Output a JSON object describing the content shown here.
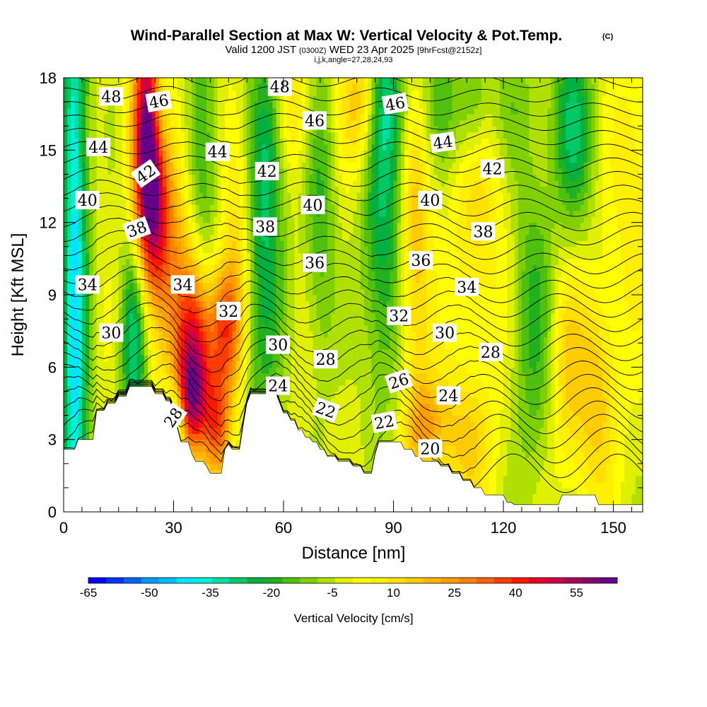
{
  "chart_data": {
    "type": "heatmap",
    "title": "Wind-Parallel Section at Max W: Vertical Velocity & Pot.Temp.",
    "title_mark": "(C)",
    "subtitle": {
      "prefix": "Valid 1200 JST",
      "utc": "(0300Z)",
      "date": "WED 23 Apr 2025",
      "forecast": "[9hrFcst@2152z]"
    },
    "indices": "i,j,k,angle=27,28,24,93",
    "xlabel": "Distance [nm]",
    "ylabel": "Height [Kft MSL]",
    "xlim": [
      0,
      158
    ],
    "ylim": [
      0,
      18
    ],
    "xticks": [
      0,
      30,
      60,
      90,
      120,
      150
    ],
    "yticks": [
      0,
      3,
      6,
      9,
      12,
      15,
      18
    ],
    "colorbar": {
      "label": "Vertical Velocity [cm/s]",
      "tick_values": [
        -65,
        -50,
        -35,
        -20,
        -5,
        10,
        25,
        40,
        55
      ],
      "range": [
        -65,
        65
      ],
      "step": 5,
      "colors": [
        "#0000ff",
        "#0033ff",
        "#0066ff",
        "#0099ff",
        "#00bbff",
        "#00e6ff",
        "#00f0d8",
        "#00e0a0",
        "#00c864",
        "#00b040",
        "#20b020",
        "#50c010",
        "#80d000",
        "#b0e000",
        "#e0f000",
        "#ffff00",
        "#fff000",
        "#ffe000",
        "#ffcc00",
        "#ffb400",
        "#ff9c00",
        "#ff8000",
        "#ff6000",
        "#ff3c00",
        "#ff1800",
        "#e80028",
        "#cc0044",
        "#aa005c",
        "#880070",
        "#660088"
      ]
    },
    "terrain_height_kft": {
      "x": [
        0,
        3,
        4,
        5,
        6,
        7,
        8,
        9,
        10,
        11,
        12,
        13,
        14,
        15,
        16,
        17,
        18,
        19,
        20,
        21,
        22,
        23,
        24,
        25,
        26,
        27,
        28,
        29,
        30,
        31,
        32,
        33,
        34,
        35,
        36,
        37,
        38,
        39,
        40,
        41,
        42,
        43,
        44,
        45,
        46,
        47,
        48,
        49,
        50,
        51,
        52,
        53,
        54,
        55,
        56,
        57,
        58,
        59,
        60,
        61,
        62,
        63,
        64,
        65,
        66,
        67,
        68,
        69,
        70,
        71,
        72,
        73,
        74,
        75,
        76,
        77,
        78,
        79,
        80,
        81,
        82,
        83,
        84,
        85,
        86,
        87,
        88,
        89,
        90,
        91,
        92,
        93,
        94,
        95,
        96,
        97,
        98,
        99,
        100,
        101,
        102,
        103,
        104,
        105,
        106,
        107,
        108,
        109,
        110,
        111,
        112,
        113,
        114,
        115,
        116,
        117,
        118,
        119,
        120,
        121,
        122,
        123,
        124,
        125,
        126,
        127,
        128,
        129,
        130,
        131,
        132,
        133,
        134,
        135,
        136,
        137,
        138,
        139,
        140,
        141,
        142,
        143,
        144,
        145,
        146,
        147,
        148,
        149,
        150,
        151,
        152,
        153,
        154,
        155,
        156,
        157,
        158
      ],
      "h": [
        2.6,
        2.6,
        3.0,
        3.0,
        3.0,
        3.0,
        3.0,
        4.2,
        4.2,
        4.2,
        4.5,
        4.5,
        4.5,
        4.8,
        4.8,
        4.8,
        5.2,
        5.2,
        5.2,
        5.2,
        5.2,
        5.2,
        5.2,
        4.9,
        4.9,
        4.9,
        4.6,
        4.6,
        4.2,
        3.5,
        2.9,
        2.9,
        2.9,
        2.4,
        2.1,
        2.1,
        2.1,
        1.9,
        1.6,
        1.6,
        1.6,
        1.6,
        2.6,
        2.8,
        2.6,
        2.6,
        2.6,
        3.6,
        4.5,
        4.9,
        4.9,
        4.9,
        4.9,
        4.9,
        4.9,
        4.9,
        4.9,
        4.5,
        4.1,
        4.1,
        3.8,
        3.8,
        3.4,
        3.4,
        3.1,
        3.1,
        2.9,
        2.9,
        2.6,
        2.6,
        2.3,
        2.3,
        2.3,
        2.1,
        2.1,
        2.1,
        2.1,
        1.9,
        1.9,
        1.9,
        1.6,
        1.6,
        1.6,
        2.4,
        2.9,
        2.9,
        2.9,
        2.9,
        2.9,
        2.9,
        2.9,
        2.6,
        2.6,
        2.6,
        2.3,
        2.3,
        2.1,
        2.1,
        2.1,
        2.1,
        2.1,
        1.9,
        1.9,
        1.9,
        1.6,
        1.6,
        1.6,
        1.3,
        1.3,
        1.3,
        1.0,
        1.0,
        1.0,
        0.7,
        0.7,
        0.7,
        0.7,
        0.7,
        0.7,
        0.4,
        0.4,
        0.3,
        0.3,
        0.3,
        0.3,
        0.3,
        0.3,
        0.3,
        0.3,
        0.3,
        0.3,
        0.3,
        0.3,
        0.3,
        0.7,
        0.7,
        0.7,
        0.7,
        0.7,
        0.7,
        0.7,
        0.7,
        0.7,
        0.7,
        0.3,
        0.3,
        0.3,
        0.3,
        0.3,
        0.3,
        0.3,
        0.3,
        0.3,
        0.3,
        0.3,
        0.3,
        0.3,
        0.3,
        0.3,
        0.3
      ]
    },
    "vertical_velocity_features": [
      {
        "x": 3,
        "z": 9,
        "sx": 2.5,
        "sz": 20,
        "w": -45
      },
      {
        "x": 23,
        "z": 16,
        "sx": 3,
        "sz": 3.5,
        "w": 58
      },
      {
        "x": 24,
        "z": 13,
        "sx": 3,
        "sz": 3,
        "w": 40
      },
      {
        "x": 29,
        "z": 11,
        "sx": 4,
        "sz": 4,
        "w": 25
      },
      {
        "x": 36,
        "z": 7,
        "sx": 3.5,
        "sz": 2.5,
        "w": 52
      },
      {
        "x": 35,
        "z": 4.5,
        "sx": 3,
        "sz": 1.5,
        "w": 40
      },
      {
        "x": 44,
        "z": 7.5,
        "sx": 3,
        "sz": 2,
        "w": 42
      },
      {
        "x": 42,
        "z": 3.5,
        "sx": 2.5,
        "sz": 1.5,
        "w": 35
      },
      {
        "x": 26,
        "z": 16.5,
        "sx": 2,
        "sz": 2,
        "w": -28
      },
      {
        "x": 19,
        "z": 7,
        "sx": 2.5,
        "sz": 3,
        "w": -35
      },
      {
        "x": 30,
        "z": 3.5,
        "sx": 2,
        "sz": 1.2,
        "w": -30
      },
      {
        "x": 38,
        "z": 15,
        "sx": 3,
        "sz": 5,
        "w": -20
      },
      {
        "x": 54,
        "z": 10.5,
        "sx": 4,
        "sz": 6,
        "w": -25
      },
      {
        "x": 56,
        "z": 15.5,
        "sx": 3,
        "sz": 3,
        "w": -15
      },
      {
        "x": 70,
        "z": 13,
        "sx": 3,
        "sz": 5,
        "w": -18
      },
      {
        "x": 87,
        "z": 13,
        "sx": 4,
        "sz": 6,
        "w": -28
      },
      {
        "x": 88,
        "z": 17,
        "sx": 4,
        "sz": 2,
        "w": -18
      },
      {
        "x": 48,
        "z": 12,
        "sx": 3,
        "sz": 4,
        "w": 18
      },
      {
        "x": 63,
        "z": 17,
        "sx": 4,
        "sz": 2,
        "w": 15
      },
      {
        "x": 82,
        "z": 17,
        "sx": 4,
        "sz": 2,
        "w": 28
      },
      {
        "x": 96,
        "z": 11,
        "sx": 3,
        "sz": 5,
        "w": 22
      },
      {
        "x": 99,
        "z": 3.5,
        "sx": 4,
        "sz": 1.5,
        "w": 25
      },
      {
        "x": 110,
        "z": 3,
        "sx": 5,
        "sz": 2,
        "w": 18
      },
      {
        "x": 113,
        "z": 13,
        "sx": 5,
        "sz": 4,
        "w": 15
      },
      {
        "x": 103,
        "z": 17,
        "sx": 5,
        "sz": 2,
        "w": -15
      },
      {
        "x": 112,
        "z": 17,
        "sx": 3,
        "sz": 2,
        "w": -18
      },
      {
        "x": 128,
        "z": 8,
        "sx": 4,
        "sz": 5,
        "w": -18
      },
      {
        "x": 137,
        "z": 6,
        "sx": 3,
        "sz": 3,
        "w": 15
      },
      {
        "x": 139,
        "z": 16,
        "sx": 4,
        "sz": 3,
        "w": -28
      },
      {
        "x": 145,
        "z": 5,
        "sx": 4,
        "sz": 3,
        "w": 22
      },
      {
        "x": 155,
        "z": 14,
        "sx": 4,
        "sz": 4,
        "w": 12
      },
      {
        "x": 122,
        "z": 17,
        "sx": 5,
        "sz": 2,
        "w": -10
      }
    ],
    "potential_temperature_contours": {
      "levels": [
        20,
        21,
        22,
        23,
        24,
        25,
        26,
        27,
        28,
        29,
        30,
        31,
        32,
        33,
        34,
        35,
        36,
        37,
        38,
        39,
        40,
        41,
        42,
        43,
        44,
        45,
        46,
        47,
        48,
        49
      ],
      "labels": [
        {
          "text": "48",
          "x": 13,
          "y": 17.2,
          "angle": 0
        },
        {
          "text": "46",
          "x": 26,
          "y": 17.0,
          "angle": -10
        },
        {
          "text": "48",
          "x": 59,
          "y": 17.6,
          "angle": 0
        },
        {
          "text": "46",
          "x": 68.5,
          "y": 16.2,
          "angle": 0
        },
        {
          "text": "46",
          "x": 90.5,
          "y": 16.9,
          "angle": -10
        },
        {
          "text": "44",
          "x": 9.5,
          "y": 15.1,
          "angle": 0
        },
        {
          "text": "44",
          "x": 42,
          "y": 14.9,
          "angle": 0
        },
        {
          "text": "44",
          "x": 103.5,
          "y": 15.3,
          "angle": -8
        },
        {
          "text": "42",
          "x": 22.5,
          "y": 14.0,
          "angle": -35
        },
        {
          "text": "42",
          "x": 55.5,
          "y": 14.1,
          "angle": 0
        },
        {
          "text": "42",
          "x": 117,
          "y": 14.2,
          "angle": 0
        },
        {
          "text": "40",
          "x": 6.5,
          "y": 12.9,
          "angle": 0
        },
        {
          "text": "40",
          "x": 68,
          "y": 12.7,
          "angle": 0
        },
        {
          "text": "40",
          "x": 100,
          "y": 12.9,
          "angle": 0
        },
        {
          "text": "38",
          "x": 20,
          "y": 11.7,
          "angle": -20
        },
        {
          "text": "38",
          "x": 55,
          "y": 11.8,
          "angle": 0
        },
        {
          "text": "38",
          "x": 114.5,
          "y": 11.6,
          "angle": 0
        },
        {
          "text": "36",
          "x": 68.5,
          "y": 10.3,
          "angle": 0
        },
        {
          "text": "36",
          "x": 97.5,
          "y": 10.4,
          "angle": 0
        },
        {
          "text": "34",
          "x": 6.5,
          "y": 9.4,
          "angle": 0
        },
        {
          "text": "34",
          "x": 32.5,
          "y": 9.4,
          "angle": 0
        },
        {
          "text": "34",
          "x": 110,
          "y": 9.3,
          "angle": 0
        },
        {
          "text": "32",
          "x": 45,
          "y": 8.3,
          "angle": 0
        },
        {
          "text": "32",
          "x": 91.5,
          "y": 8.1,
          "angle": 0
        },
        {
          "text": "30",
          "x": 13,
          "y": 7.4,
          "angle": 0
        },
        {
          "text": "30",
          "x": 58.5,
          "y": 6.9,
          "angle": 0
        },
        {
          "text": "30",
          "x": 104,
          "y": 7.4,
          "angle": 0
        },
        {
          "text": "28",
          "x": 71.5,
          "y": 6.3,
          "angle": 0
        },
        {
          "text": "28",
          "x": 116.5,
          "y": 6.6,
          "angle": 0
        },
        {
          "text": "28",
          "x": 30,
          "y": 3.9,
          "angle": -55
        },
        {
          "text": "26",
          "x": 91.5,
          "y": 5.4,
          "angle": -18
        },
        {
          "text": "24",
          "x": 58.5,
          "y": 5.2,
          "angle": 0
        },
        {
          "text": "24",
          "x": 105,
          "y": 4.8,
          "angle": 0
        },
        {
          "text": "22",
          "x": 71.5,
          "y": 4.2,
          "angle": 20
        },
        {
          "text": "22",
          "x": 87.5,
          "y": 3.7,
          "angle": -10
        },
        {
          "text": "20",
          "x": 100,
          "y": 2.6,
          "angle": 0
        }
      ]
    }
  }
}
